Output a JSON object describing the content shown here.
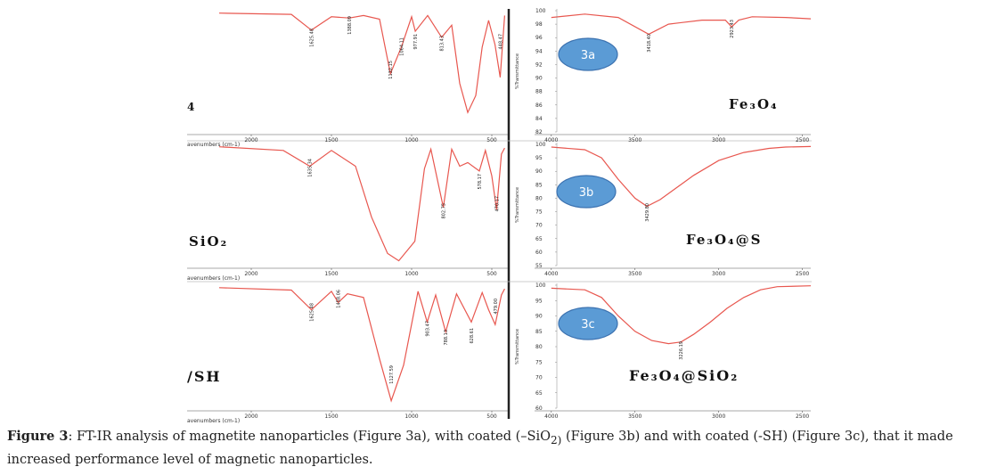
{
  "colors": {
    "curve": "#e8574f",
    "badge_fill": "#5b9bd5",
    "badge_stroke": "#3c72b0",
    "divider": "#222222"
  },
  "caption": {
    "label": "Figure 3",
    "text": ": FT-IR analysis of magnetite nanoparticles (Figure 3a), with coated (–SiO",
    "sub": "2)",
    "text2": " (Figure 3b) and with coated (-SH) (Figure 3c), that it made increased performance level of magnetic nanoparticles."
  },
  "chart_data": [
    {
      "type": "line",
      "panel": "left",
      "row": 0,
      "x_ticks": [
        "2000",
        "1500",
        "1000",
        "500"
      ],
      "xlabel_fragment": "avenumbers (cm-1)",
      "label_fragment": "4",
      "peaks": [
        [
          "1625.48"
        ],
        [
          "1388.09"
        ],
        [
          "1132.15"
        ],
        [
          "1064.11"
        ],
        [
          "977.91"
        ],
        [
          "813.43"
        ],
        [
          "448.47"
        ]
      ],
      "x": [
        2200,
        1750,
        1625,
        1500,
        1388,
        1300,
        1200,
        1132,
        1064,
        1000,
        977,
        900,
        813,
        750,
        700,
        650,
        600,
        560,
        520,
        480,
        448,
        420
      ],
      "y": [
        98,
        97,
        84,
        95,
        94,
        96,
        93,
        48,
        70,
        95,
        83,
        96,
        78,
        88,
        40,
        16,
        30,
        70,
        92,
        72,
        45,
        96
      ]
    },
    {
      "type": "line",
      "panel": "right",
      "row": 0,
      "badge": "3a",
      "y_ticks": [
        "100",
        "98",
        "96",
        "94",
        "92",
        "90",
        "88",
        "86",
        "84",
        "82"
      ],
      "x_ticks": [
        "4000",
        "3500",
        "3000",
        "2500"
      ],
      "ylabel": "%Transmittance",
      "label_fragment": "Fe₃O₄",
      "peaks": [
        [
          "3418.40"
        ],
        [
          "2923.43"
        ]
      ],
      "x": [
        4000,
        3800,
        3600,
        3418,
        3300,
        3100,
        2960,
        2923,
        2880,
        2800,
        2600,
        2450
      ],
      "y": [
        99,
        99.5,
        99,
        96.5,
        98,
        98.6,
        98.6,
        97.6,
        98.6,
        99.1,
        99,
        98.8
      ]
    },
    {
      "type": "line",
      "panel": "left",
      "row": 1,
      "x_ticks": [
        "2000",
        "1500",
        "1000",
        "500"
      ],
      "xlabel_fragment": "avenumbers (cm-1)",
      "label_fragment": "SiO₂",
      "peaks": [
        [
          "1635.34"
        ],
        [
          "802.75"
        ],
        [
          "578.17"
        ],
        [
          "470.17"
        ]
      ],
      "x": [
        2200,
        1800,
        1635,
        1500,
        1350,
        1250,
        1150,
        1080,
        980,
        920,
        880,
        802,
        750,
        700,
        650,
        578,
        540,
        500,
        470,
        440,
        420
      ],
      "y": [
        98,
        95,
        82,
        95,
        82,
        40,
        10,
        4,
        20,
        80,
        96,
        48,
        96,
        82,
        85,
        78,
        95,
        74,
        46,
        92,
        97
      ]
    },
    {
      "type": "line",
      "panel": "right",
      "row": 1,
      "badge": "3b",
      "y_ticks": [
        "100",
        "95",
        "90",
        "85",
        "80",
        "75",
        "70",
        "65",
        "60",
        "55"
      ],
      "x_ticks": [
        "4000",
        "3500",
        "3000",
        "2500"
      ],
      "ylabel": "%Transmittance",
      "label_fragment": "Fe₃O₄@S",
      "peaks": [
        [
          "3429.80"
        ]
      ],
      "x": [
        4000,
        3800,
        3700,
        3600,
        3500,
        3429,
        3350,
        3250,
        3150,
        3000,
        2850,
        2700,
        2600,
        2450
      ],
      "y": [
        99,
        98,
        95,
        87,
        80,
        77,
        79.5,
        84,
        88.5,
        94,
        97,
        98.5,
        99,
        99.2
      ]
    },
    {
      "type": "line",
      "panel": "left",
      "row": 2,
      "x_ticks": [
        "2000",
        "1500",
        "1000",
        "500"
      ],
      "xlabel_fragment": "avenumbers (cm-1)",
      "label_fragment": "/SH",
      "peaks": [
        [
          "1625.48"
        ],
        [
          "1458.06"
        ],
        [
          "1127.59"
        ],
        [
          "903.47"
        ],
        [
          "788.13"
        ],
        [
          "628.61"
        ],
        [
          "479.00"
        ]
      ],
      "x": [
        2200,
        1750,
        1625,
        1500,
        1458,
        1400,
        1300,
        1200,
        1127,
        1050,
        960,
        903,
        850,
        788,
        720,
        628,
        560,
        520,
        479,
        440,
        420
      ],
      "y": [
        98,
        96,
        80,
        95,
        86,
        93,
        90,
        40,
        6,
        35,
        95,
        70,
        92,
        62,
        93,
        70,
        94,
        80,
        68,
        92,
        97
      ]
    },
    {
      "type": "line",
      "panel": "right",
      "row": 2,
      "badge": "3c",
      "y_ticks": [
        "100",
        "95",
        "90",
        "85",
        "80",
        "75",
        "70",
        "65",
        "60"
      ],
      "x_ticks": [
        "4000",
        "3500",
        "3000",
        "2500"
      ],
      "ylabel": "%Transmittance",
      "label_fragment": "Fe₃O₄@SiO₂",
      "peaks": [
        [
          "3226.19"
        ]
      ],
      "x": [
        4000,
        3800,
        3700,
        3600,
        3500,
        3400,
        3300,
        3226,
        3150,
        3050,
        2950,
        2850,
        2750,
        2650,
        2450
      ],
      "y": [
        99,
        98.5,
        96,
        90,
        85,
        82,
        81,
        81.5,
        84,
        88,
        92.5,
        96,
        98.5,
        99.5,
        99.8
      ]
    }
  ]
}
